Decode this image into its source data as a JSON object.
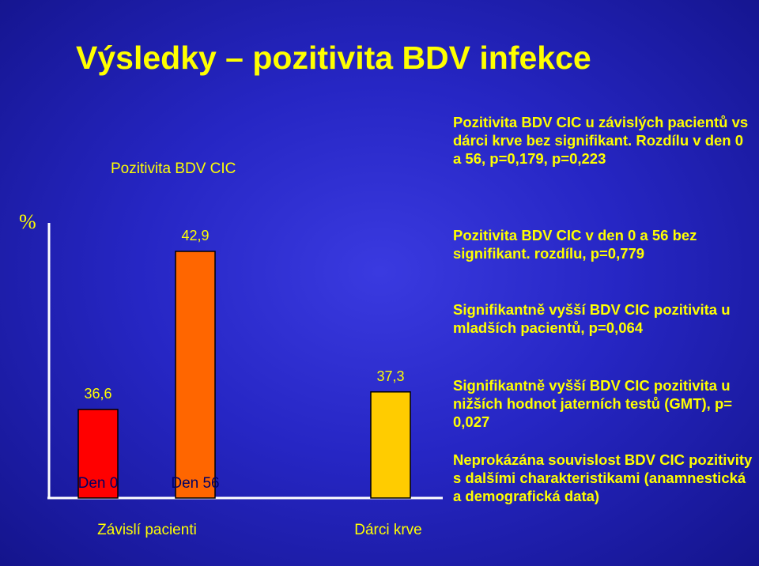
{
  "slide": {
    "title": "Výsledky – pozitivita BDV infekce"
  },
  "chart_data": {
    "type": "bar",
    "title": "Pozitivita BDV CIC",
    "ylabel": "%",
    "ylim": [
      0,
      50
    ],
    "categories": [
      "Den 0",
      "Den 56",
      "Dárci krve"
    ],
    "values": [
      36.6,
      42.9,
      37.3
    ],
    "value_labels": [
      "36,6",
      "42,9",
      "37,3"
    ],
    "bar_colors": [
      "#ff0000",
      "#ff6600",
      "#ffcc00"
    ],
    "group_labels": [
      "Závislí pacienti",
      "Dárci krve"
    ],
    "grid": false,
    "legend": "none"
  },
  "notes": [
    "Pozitivita BDV CIC u závislých pacientů vs dárci krve bez signifikant. Rozdílu v den 0 a 56, p=0,179, p=0,223",
    "Pozitivita BDV CIC v den 0 a 56 bez signifikant. rozdílu, p=0,779",
    "Signifikantně vyšší BDV CIC pozitivita u mladších pacientů, p=0,064",
    "Signifikantně vyšší BDV CIC pozitivita u nižších hodnot jaterních testů (GMT), p= 0,027",
    "Neprokázána souvislost BDV CIC pozitivity s dalšími charakteristikami (anamnestická a demografická data)"
  ]
}
